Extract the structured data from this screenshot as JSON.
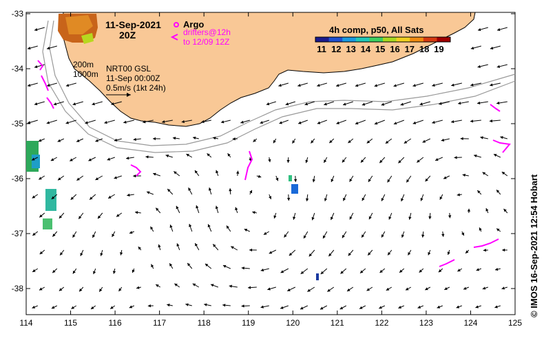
{
  "title": {
    "date": "11-Sep-2021",
    "time": "20Z"
  },
  "legend": {
    "argo_label": "Argo",
    "drifters_line1": "drifters@12h",
    "drifters_line2": "to 12/09 12Z",
    "isobath_200": "200m",
    "isobath_1000": "1000m",
    "product_line1": "NRT00 GSL",
    "product_line2": "11-Sep 00:00Z",
    "scale_text": "0.5m/s (1kt 24h)"
  },
  "colorbar": {
    "title": "4h comp, p50, All Sats",
    "ticks": [
      "11",
      "12",
      "13",
      "14",
      "15",
      "16",
      "17",
      "18",
      "19"
    ],
    "colors": [
      "#1a1a8c",
      "#1e4fd0",
      "#1a9ae0",
      "#20c8b8",
      "#3dd060",
      "#a8d820",
      "#f0d020",
      "#f08a10",
      "#d63a10",
      "#a00000"
    ]
  },
  "axes": {
    "x_ticks": [
      "114",
      "115",
      "116",
      "117",
      "118",
      "119",
      "120",
      "121",
      "122",
      "123",
      "124",
      "125"
    ],
    "y_ticks": [
      "-33",
      "-34",
      "-35",
      "-36",
      "-37",
      "-38"
    ]
  },
  "credit": "© IMOS 16-Sep-2021 12:54 Hobart",
  "colors": {
    "land": "#f9c896",
    "argo": "#ff00ff",
    "isobath": "#999999"
  }
}
